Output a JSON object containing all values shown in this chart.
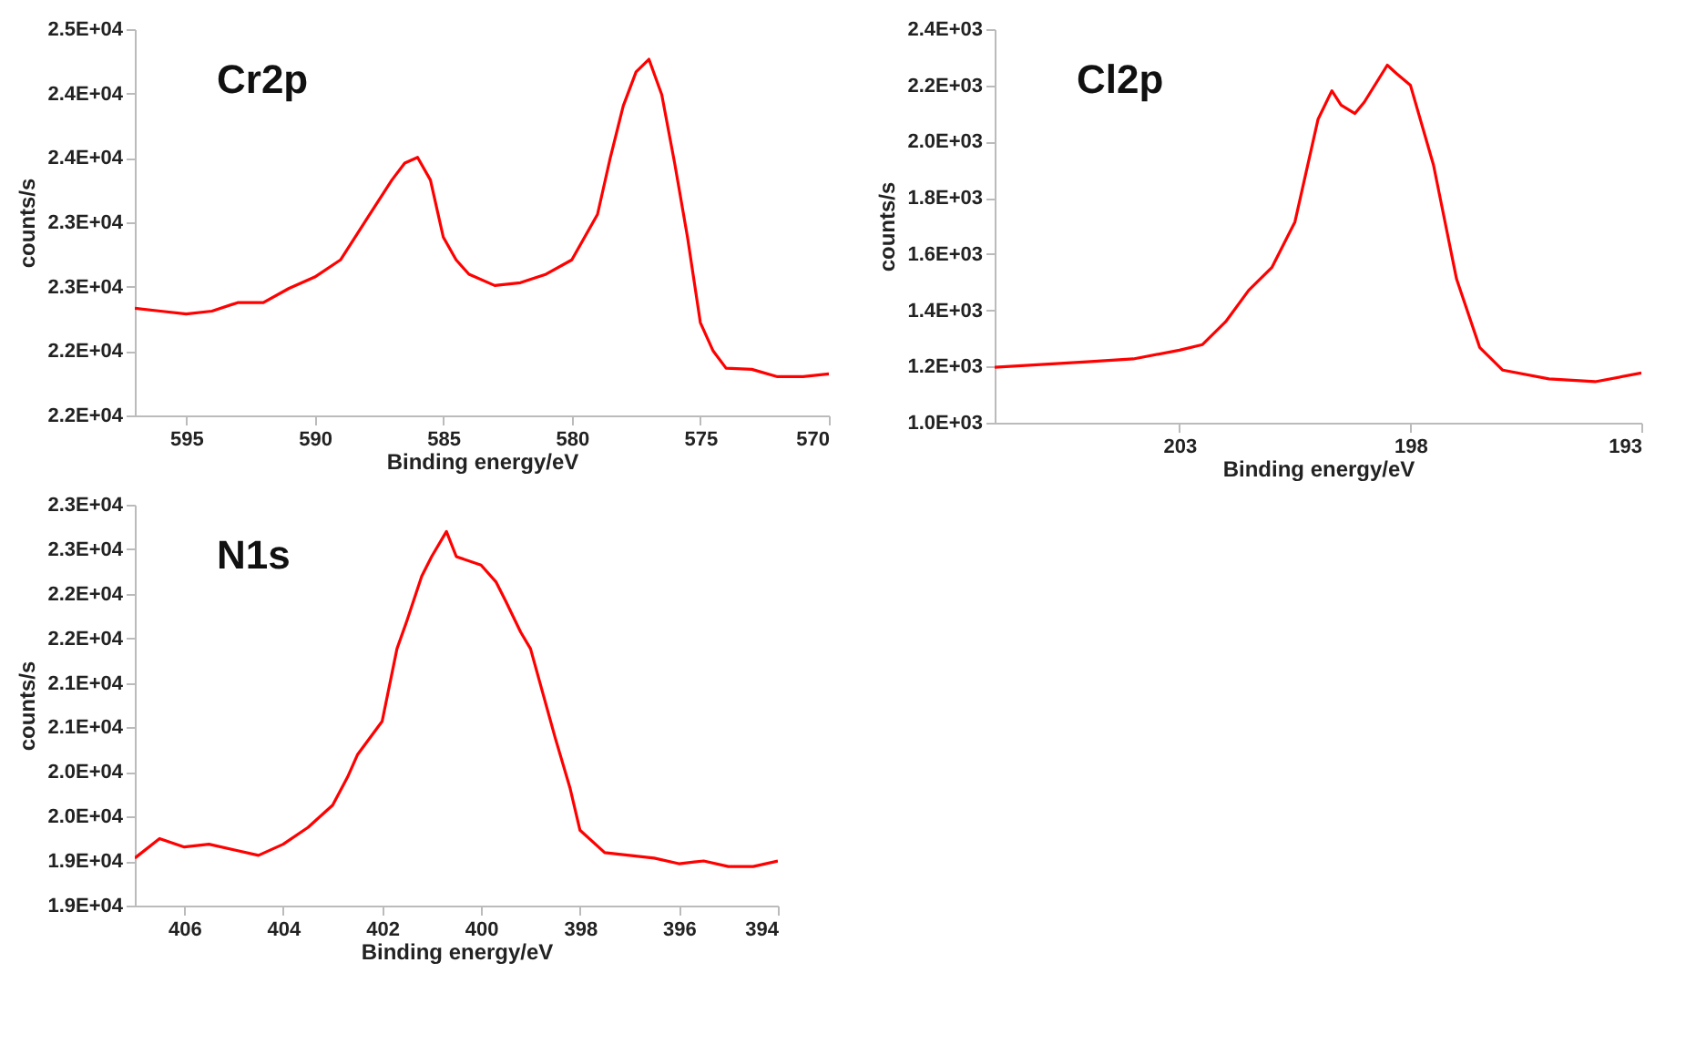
{
  "chart_data": [
    {
      "type": "line",
      "title": "Cr2p",
      "xlabel": "Binding energy/eV",
      "ylabel": "counts/s",
      "xlim": [
        597,
        570
      ],
      "xticks": [
        595,
        590,
        585,
        580,
        575,
        570
      ],
      "ylim": [
        21500,
        24500
      ],
      "yticks": [
        {
          "value": 21500,
          "label": "2.2E+04"
        },
        {
          "value": 22000,
          "label": "2.2E+04"
        },
        {
          "value": 22500,
          "label": "2.3E+04"
        },
        {
          "value": 23000,
          "label": "2.3E+04"
        },
        {
          "value": 23500,
          "label": "2.4E+04"
        },
        {
          "value": 24000,
          "label": "2.4E+04"
        },
        {
          "value": 24500,
          "label": "2.5E+04"
        }
      ],
      "grid": false,
      "marker": "none",
      "line_style": "solid",
      "x": [
        597,
        596,
        595,
        594,
        593,
        592,
        591,
        590,
        589,
        588,
        587,
        586.5,
        586,
        585.5,
        585,
        584.5,
        584,
        583,
        582,
        581,
        580,
        579,
        578.5,
        578,
        577.5,
        577,
        576.5,
        576,
        575.5,
        575,
        574.5,
        574,
        573,
        572,
        571,
        570
      ],
      "series": [
        {
          "color": "#ff0000",
          "values": [
            22332,
            22310,
            22288,
            22310,
            22376,
            22376,
            22487,
            22575,
            22708,
            23018,
            23328,
            23460,
            23504,
            23328,
            22885,
            22708,
            22597,
            22509,
            22531,
            22597,
            22708,
            23062,
            23504,
            23903,
            24168,
            24266,
            23991,
            23460,
            22885,
            22221,
            22000,
            21867,
            21858,
            21801,
            21801,
            21823
          ]
        }
      ]
    },
    {
      "type": "line",
      "title": "Cl2p",
      "xlabel": "Binding energy/eV",
      "ylabel": "counts/s",
      "xlim": [
        207,
        193
      ],
      "xticks": [
        203,
        198,
        193
      ],
      "ylim": [
        1000,
        2400
      ],
      "yticks": [
        {
          "value": 1000,
          "label": "1.0E+03"
        },
        {
          "value": 1200,
          "label": "1.2E+03"
        },
        {
          "value": 1400,
          "label": "1.4E+03"
        },
        {
          "value": 1600,
          "label": "1.6E+03"
        },
        {
          "value": 1800,
          "label": "1.8E+03"
        },
        {
          "value": 2000,
          "label": "2.0E+03"
        },
        {
          "value": 2200,
          "label": "2.2E+03"
        },
        {
          "value": 2400,
          "label": "2.4E+03"
        }
      ],
      "grid": false,
      "marker": "none",
      "line_style": "solid",
      "x": [
        207,
        206,
        205,
        204,
        203,
        202.5,
        202,
        201.5,
        201,
        200.5,
        200,
        199.7,
        199.5,
        199.2,
        199,
        198.5,
        198.3,
        198,
        197.5,
        197,
        196.5,
        196,
        195,
        194,
        193
      ],
      "series": [
        {
          "color": "#ff0000",
          "values": [
            1197,
            1207,
            1217,
            1227,
            1258,
            1278,
            1359,
            1471,
            1552,
            1714,
            2079,
            2181,
            2130,
            2100,
            2140,
            2272,
            2242,
            2201,
            1917,
            1511,
            1268,
            1187,
            1156,
            1146,
            1177
          ]
        }
      ]
    },
    {
      "type": "line",
      "title": "N1s",
      "xlabel": "Binding energy/eV",
      "ylabel": "counts/s",
      "xlim": [
        407,
        394
      ],
      "xticks": [
        406,
        404,
        402,
        400,
        398,
        396,
        394
      ],
      "ylim": [
        18500,
        23000
      ],
      "yticks": [
        {
          "value": 18500,
          "label": "1.9E+04"
        },
        {
          "value": 19000,
          "label": "1.9E+04"
        },
        {
          "value": 19500,
          "label": "2.0E+04"
        },
        {
          "value": 20000,
          "label": "2.0E+04"
        },
        {
          "value": 20500,
          "label": "2.1E+04"
        },
        {
          "value": 21000,
          "label": "2.1E+04"
        },
        {
          "value": 21500,
          "label": "2.2E+04"
        },
        {
          "value": 22000,
          "label": "2.2E+04"
        },
        {
          "value": 22500,
          "label": "2.3E+04"
        },
        {
          "value": 23000,
          "label": "2.3E+04"
        }
      ],
      "grid": false,
      "marker": "none",
      "line_style": "solid",
      "x": [
        407,
        406.5,
        406,
        405.5,
        405,
        404.5,
        404,
        403.5,
        403,
        402.7,
        402.5,
        402,
        401.7,
        401.5,
        401.2,
        401,
        400.7,
        400.5,
        400,
        399.7,
        399.5,
        399.2,
        399,
        398.5,
        398.2,
        398,
        397.5,
        397,
        396.5,
        396,
        395.5,
        395,
        394.5,
        394
      ],
      "series": [
        {
          "color": "#ff0000",
          "values": [
            19033,
            19252,
            19158,
            19189,
            19127,
            19064,
            19189,
            19377,
            19628,
            19941,
            20192,
            20568,
            21383,
            21696,
            22197,
            22417,
            22699,
            22417,
            22323,
            22135,
            21915,
            21571,
            21383,
            20380,
            19816,
            19346,
            19095,
            19064,
            19033,
            18970,
            19001,
            18939,
            18939,
            19001
          ]
        }
      ]
    }
  ]
}
